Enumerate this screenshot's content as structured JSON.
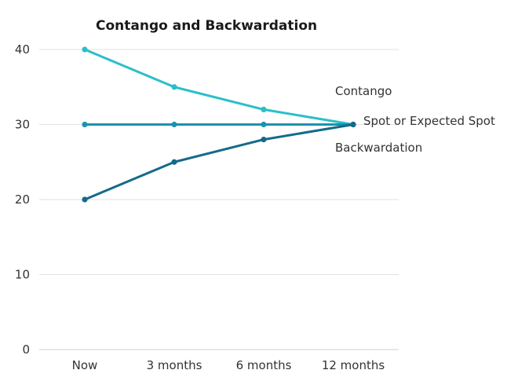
{
  "chart_data": {
    "type": "line",
    "title": "Contango and Backwardation",
    "categories": [
      "Now",
      "3 months",
      "6 months",
      "12 months"
    ],
    "ylim": [
      0,
      40
    ],
    "yticks": [
      0,
      10,
      20,
      30,
      40
    ],
    "grid": true,
    "series": [
      {
        "name": "Contango",
        "values": [
          40,
          35,
          32,
          30
        ],
        "color": "#2bbfc9"
      },
      {
        "name": "Spot or Expected Spot",
        "values": [
          30,
          30,
          30,
          30
        ],
        "color": "#1b93ad"
      },
      {
        "name": "Backwardation",
        "values": [
          20,
          25,
          28,
          30
        ],
        "color": "#156a8a"
      }
    ]
  }
}
